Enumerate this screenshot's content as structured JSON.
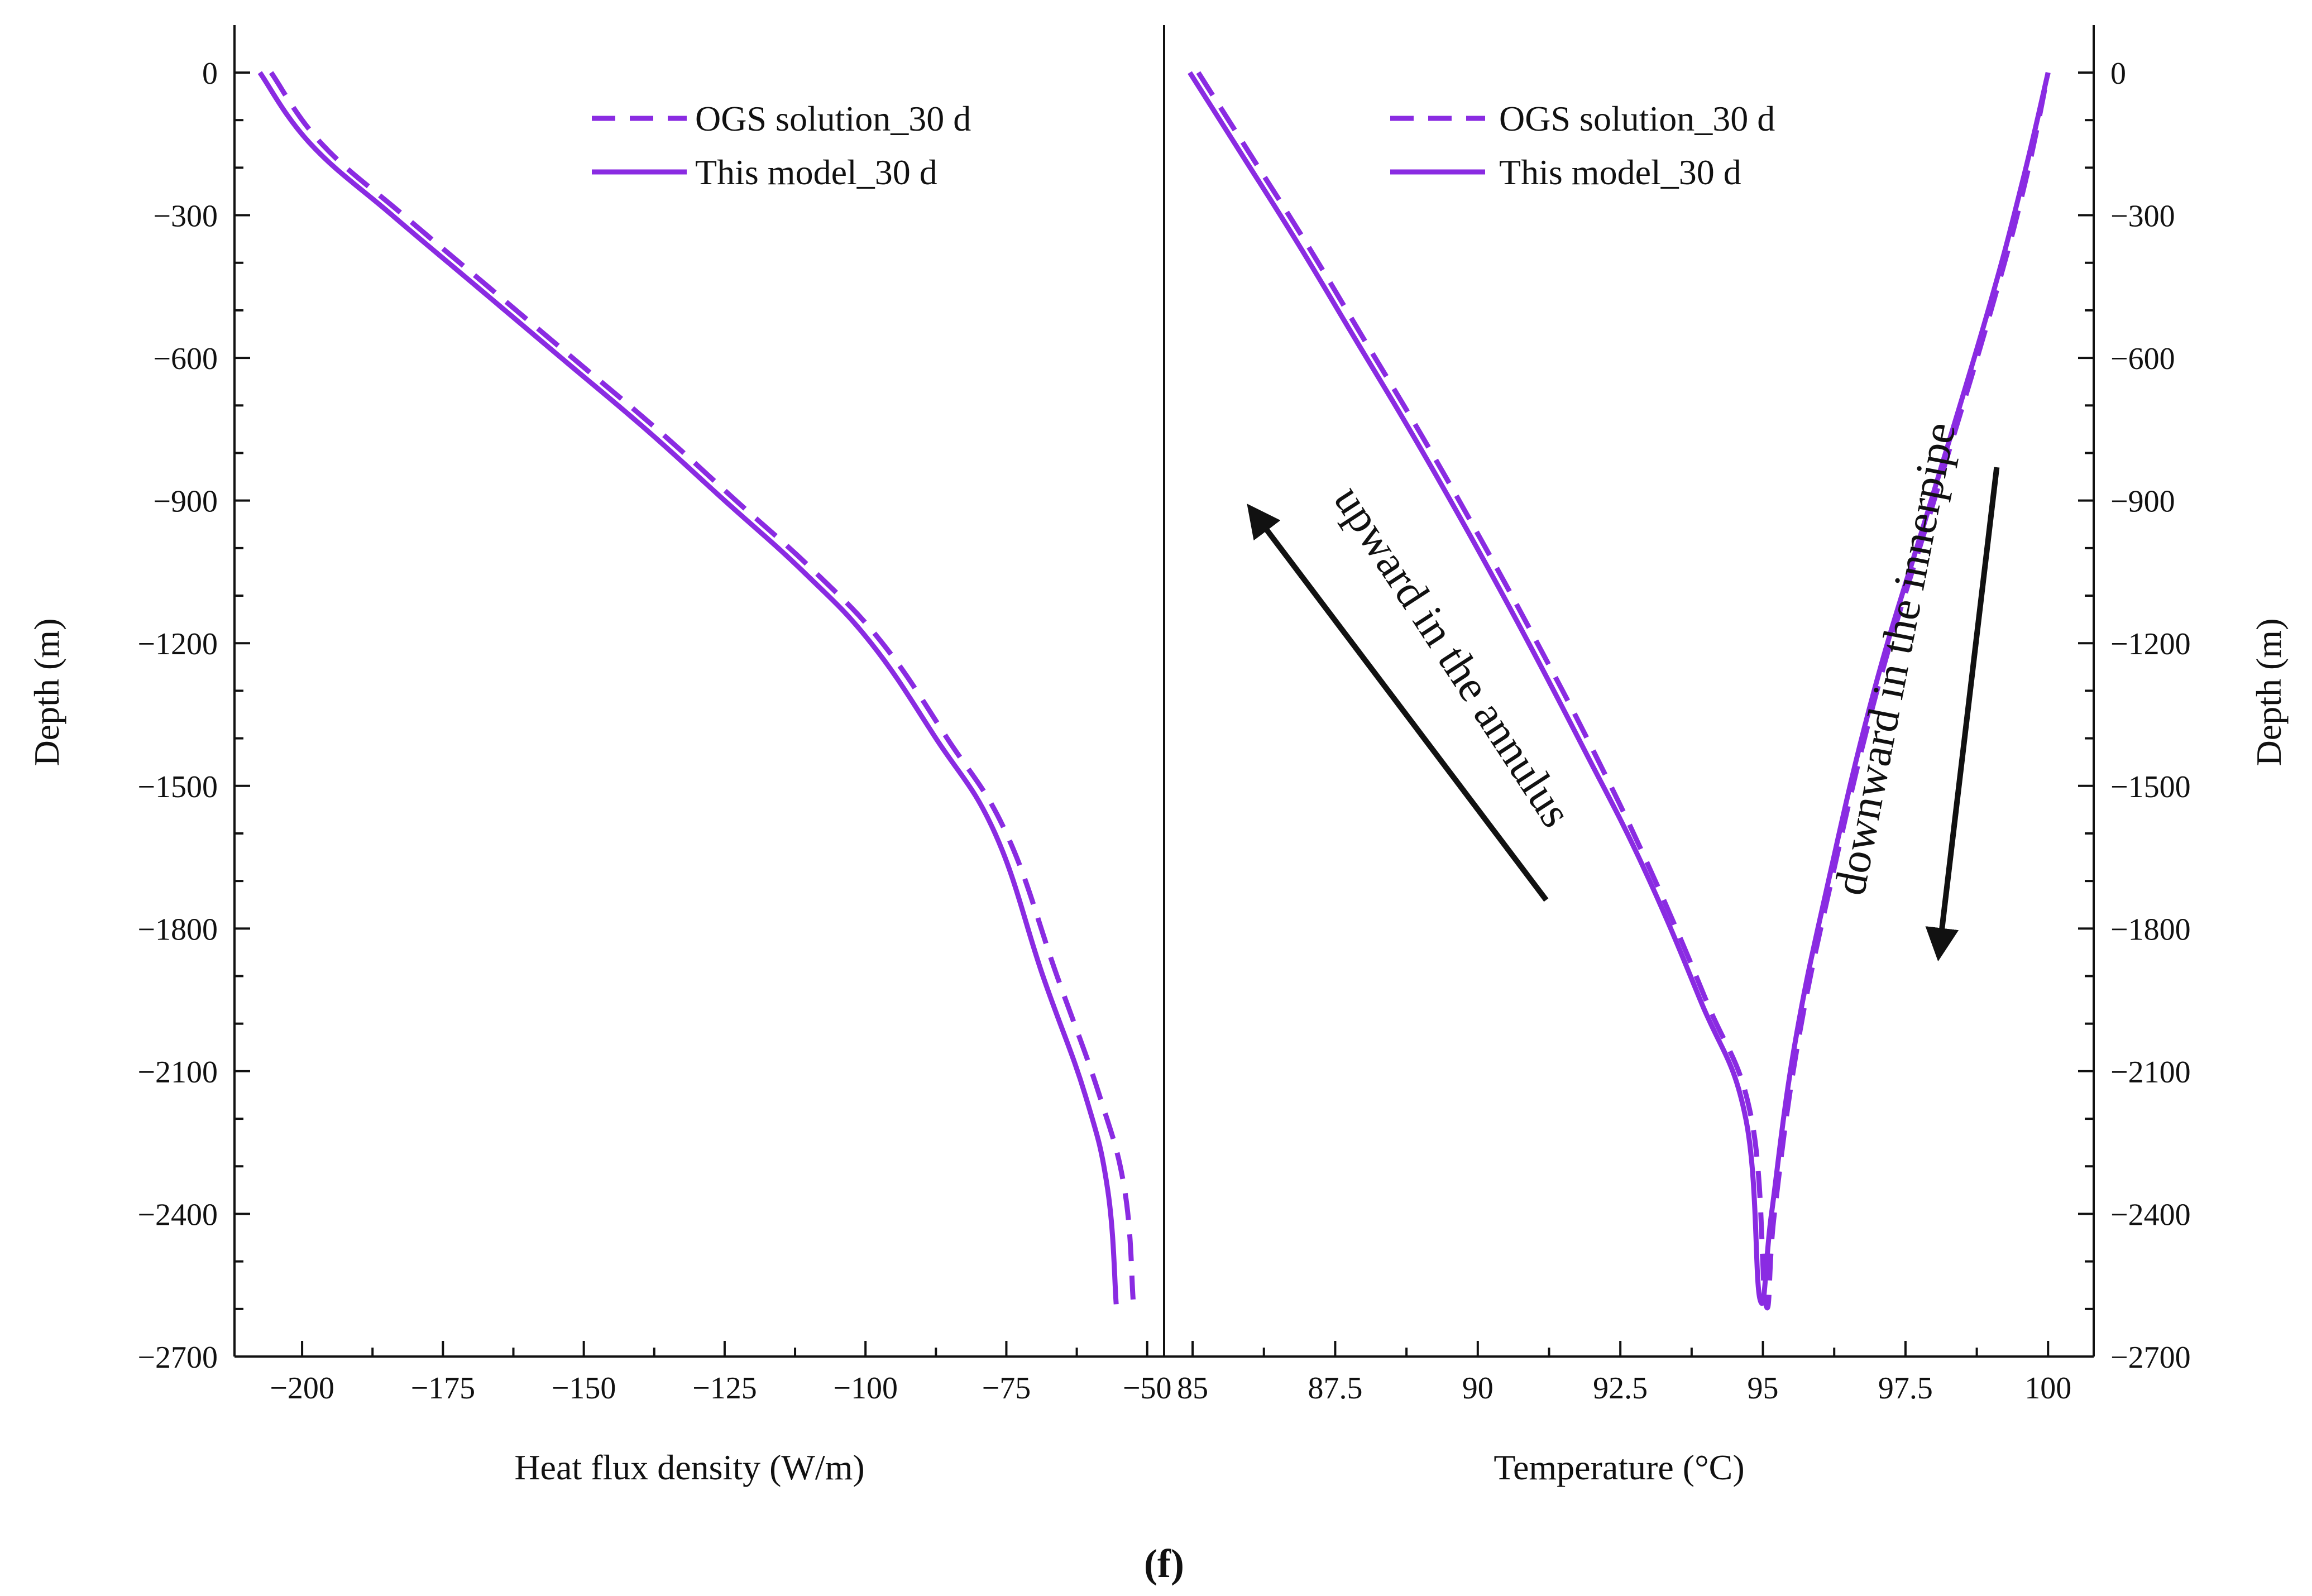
{
  "colors": {
    "series": "#8a2be2",
    "axis": "#111111"
  },
  "caption": "(f)",
  "chart_data": [
    {
      "type": "line",
      "title": "",
      "xlabel": "Heat flux density (W/m)",
      "ylabel": "Depth (m)",
      "xlim": [
        -212,
        -47
      ],
      "ylim": [
        -2700,
        50
      ],
      "xticks": [
        -200,
        -175,
        -150,
        -125,
        -100,
        -75,
        -50
      ],
      "xtick_labels": [
        "−200",
        "−175",
        "−150",
        "−125",
        "−100",
        "−75",
        "−50"
      ],
      "yticks": [
        0,
        -300,
        -600,
        -900,
        -1200,
        -1500,
        -1800,
        -2100,
        -2400,
        -2700
      ],
      "ytick_labels": [
        "0",
        "−300",
        "−600",
        "−900",
        "−1200",
        "−1500",
        "−1800",
        "−2100",
        "−2400",
        "−2700"
      ],
      "legend": {
        "position": "top-right"
      },
      "series": [
        {
          "name": "OGS solution_30 d",
          "style": "dashed",
          "x": [
            -205.5,
            -196.5,
            -182,
            -167,
            -152,
            -137,
            -123,
            -109,
            -97,
            -85.5,
            -75,
            -66,
            -58.5,
            -54,
            -52.5
          ],
          "y": [
            0,
            -150,
            -300,
            -450,
            -600,
            -750,
            -900,
            -1050,
            -1200,
            -1400,
            -1600,
            -1900,
            -2150,
            -2350,
            -2580
          ]
        },
        {
          "name": "This model_30 d",
          "style": "solid",
          "x": [
            -207.5,
            -198.5,
            -184,
            -169,
            -154,
            -139,
            -125,
            -111,
            -99,
            -87.5,
            -77,
            -68.5,
            -61,
            -57,
            -55.5
          ],
          "y": [
            0,
            -150,
            -300,
            -450,
            -600,
            -750,
            -900,
            -1050,
            -1200,
            -1400,
            -1600,
            -1900,
            -2150,
            -2350,
            -2590
          ]
        }
      ]
    },
    {
      "type": "line",
      "title": "",
      "xlabel": "Temperature (°C)",
      "ylabel": "Depth (m)",
      "xlim": [
        84.5,
        100.8
      ],
      "ylim": [
        -2700,
        50
      ],
      "xticks": [
        85,
        87.5,
        90,
        92.5,
        95,
        97.5,
        100
      ],
      "xtick_labels": [
        "85",
        "87.5",
        "90",
        "92.5",
        "95",
        "97.5",
        "100"
      ],
      "yticks": [
        0,
        -300,
        -600,
        -900,
        -1200,
        -1500,
        -1800,
        -2100,
        -2400,
        -2700
      ],
      "ytick_labels": [
        "0",
        "−300",
        "−600",
        "−900",
        "−1200",
        "−1500",
        "−1800",
        "−2100",
        "−2400",
        "−2700"
      ],
      "legend": {
        "position": "top-left"
      },
      "annotations": [
        {
          "text": "upward in the annulus",
          "arrow_from": [
            91.2,
            -1740
          ],
          "arrow_to": [
            86.1,
            -930
          ]
        },
        {
          "text": "downward in the innerpipe",
          "arrow_from": [
            99.1,
            -830
          ],
          "arrow_to": [
            98.1,
            -1840
          ]
        }
      ],
      "series": [
        {
          "name": "OGS solution_30 d",
          "style": "dashed",
          "x": [
            85.1,
            86.0,
            87.0,
            88.0,
            89.0,
            90.0,
            91.0,
            92.0,
            93.0,
            94.0,
            94.8,
            95.05,
            95.2,
            95.6,
            96.2,
            97.0,
            98.0,
            99.0,
            99.6,
            100.0
          ],
          "y": [
            0,
            -170,
            -360,
            -560,
            -760,
            -970,
            -1190,
            -1420,
            -1670,
            -1950,
            -2200,
            -2590,
            -2400,
            -2050,
            -1700,
            -1300,
            -900,
            -500,
            -230,
            0
          ]
        },
        {
          "name": "This model_30 d",
          "style": "solid",
          "x": [
            84.95,
            85.85,
            86.85,
            87.85,
            88.85,
            89.85,
            90.85,
            91.85,
            92.9,
            93.9,
            94.7,
            94.95,
            95.15,
            95.55,
            96.15,
            96.95,
            97.95,
            98.95,
            99.55,
            100.0
          ],
          "y": [
            0,
            -170,
            -360,
            -560,
            -760,
            -970,
            -1190,
            -1420,
            -1670,
            -1950,
            -2200,
            -2580,
            -2400,
            -2050,
            -1700,
            -1300,
            -900,
            -500,
            -230,
            0
          ]
        }
      ]
    }
  ]
}
